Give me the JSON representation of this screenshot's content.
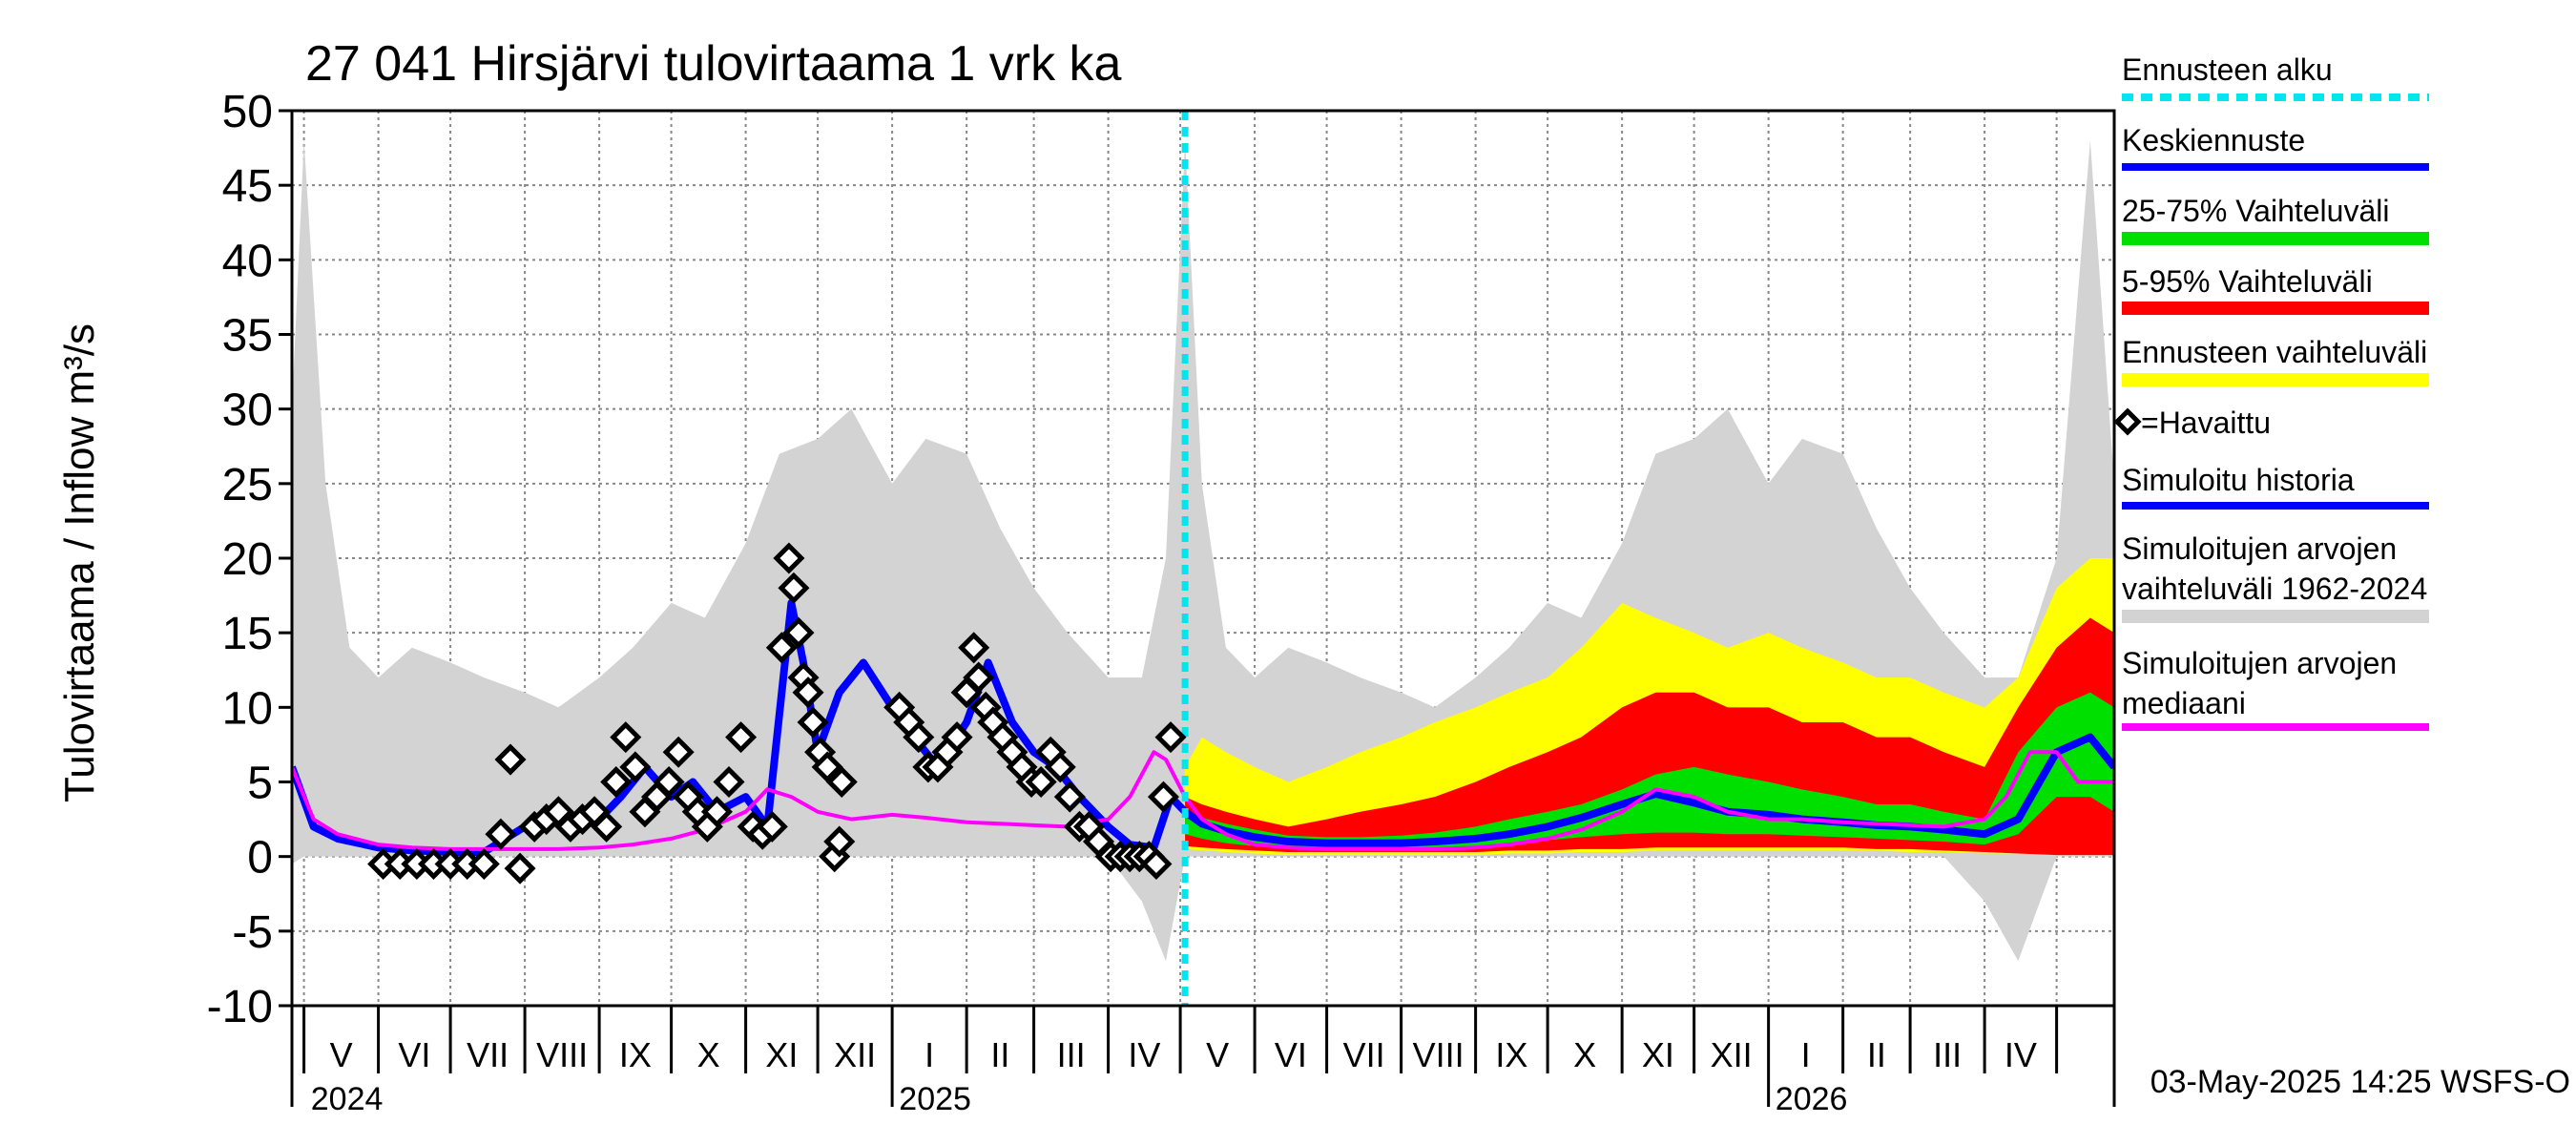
{
  "chart_data": {
    "type": "area",
    "title": "27 041 Hirsjärvi tulovirtaama 1 vrk ka",
    "ylabel": "Tulovirtaama / Inflow    m³/s",
    "ylim": [
      -10,
      50
    ],
    "yticks": [
      -10,
      -5,
      0,
      5,
      10,
      15,
      20,
      25,
      30,
      35,
      40,
      45,
      50
    ],
    "ytick_labels": [
      "-10",
      "-5",
      "0",
      "5",
      "10",
      "15",
      "20",
      "25",
      "30",
      "35",
      "40",
      "45",
      "50"
    ],
    "x_start": "2024-04-26",
    "x_end": "2026-05-25",
    "month_labels": [
      "V",
      "VI",
      "VII",
      "VIII",
      "IX",
      "X",
      "XI",
      "XII",
      "I",
      "II",
      "III",
      "IV",
      "V",
      "VI",
      "VII",
      "VIII",
      "IX",
      "X",
      "XI",
      "XII",
      "I",
      "II",
      "III",
      "IV"
    ],
    "year_labels": [
      "2024",
      "2025",
      "2026"
    ],
    "grid": true,
    "forecast_start": "2025-05-03",
    "legend_position": "right",
    "legend": [
      {
        "label": "Ennusteen alku",
        "color": "#00e5ee",
        "style": "dashed"
      },
      {
        "label": "Keskiennuste",
        "color": "#0000ff",
        "style": "line"
      },
      {
        "label": "25-75% Vaihteluväli",
        "color": "#00e000",
        "style": "band"
      },
      {
        "label": "5-95% Vaihteluväli",
        "color": "#ff0000",
        "style": "band"
      },
      {
        "label": "Ennusteen vaihteluväli",
        "color": "#ffff00",
        "style": "band"
      },
      {
        "label": "=Havaittu",
        "color": "#000000",
        "style": "marker"
      },
      {
        "label": "Simuloitu historia",
        "color": "#0000ff",
        "style": "line"
      },
      {
        "label": "Simuloitujen arvojen\nvaihteluväli 1962-2024",
        "color": "#d3d3d3",
        "style": "band"
      },
      {
        "label": "Simuloitujen arvojen\nmediaani",
        "color": "#ff00ff",
        "style": "line"
      }
    ],
    "footer": "03-May-2025 14:25 WSFS-O",
    "series": [
      {
        "name": "Simuloitujen arvojen vaihteluväli 1962-2024",
        "kind": "band",
        "color": "#d3d3d3",
        "x": [
          "2024-04-26",
          "2024-05-01",
          "2024-05-10",
          "2024-05-20",
          "2024-06-01",
          "2024-06-15",
          "2024-07-01",
          "2024-07-15",
          "2024-08-01",
          "2024-08-15",
          "2024-09-01",
          "2024-09-15",
          "2024-10-01",
          "2024-10-15",
          "2024-11-01",
          "2024-11-15",
          "2024-12-01",
          "2024-12-15",
          "2025-01-01",
          "2025-01-15",
          "2025-02-01",
          "2025-02-15",
          "2025-03-01",
          "2025-03-15",
          "2025-04-01",
          "2025-04-15",
          "2025-04-25",
          "2025-05-03",
          "2025-05-10",
          "2025-05-20",
          "2025-06-01",
          "2025-06-15",
          "2025-07-01",
          "2025-07-15",
          "2025-08-01",
          "2025-08-15",
          "2025-09-01",
          "2025-09-15",
          "2025-10-01",
          "2025-10-15",
          "2025-11-01",
          "2025-11-15",
          "2025-12-01",
          "2025-12-15",
          "2026-01-01",
          "2026-01-15",
          "2026-02-01",
          "2026-02-15",
          "2026-03-01",
          "2026-03-15",
          "2026-04-01",
          "2026-04-15",
          "2026-05-01",
          "2026-05-15",
          "2026-05-25"
        ],
        "low": [
          -0.5,
          0,
          0,
          0,
          0,
          0,
          0,
          0,
          0,
          0,
          0,
          0,
          0,
          0,
          0,
          0,
          0,
          0,
          0,
          0,
          0,
          0,
          0,
          0,
          0,
          -3,
          -7,
          0,
          0,
          0,
          0,
          0,
          0,
          0,
          0,
          0,
          0,
          0,
          0,
          0,
          0,
          0,
          0,
          0,
          0,
          0,
          0,
          0,
          0,
          0,
          -3,
          -7,
          0,
          0,
          0
        ],
        "high": [
          30,
          48,
          25,
          14,
          12,
          14,
          13,
          12,
          11,
          10,
          12,
          14,
          17,
          16,
          21,
          27,
          28,
          30,
          25,
          28,
          27,
          22,
          18,
          15,
          12,
          12,
          20,
          48,
          25,
          14,
          12,
          14,
          13,
          12,
          11,
          10,
          12,
          14,
          17,
          16,
          21,
          27,
          28,
          30,
          25,
          28,
          27,
          22,
          18,
          15,
          12,
          12,
          20,
          48,
          25
        ]
      },
      {
        "name": "Ennusteen vaihteluväli",
        "kind": "band",
        "color": "#ffff00",
        "x": [
          "2025-05-03",
          "2025-05-10",
          "2025-05-20",
          "2025-06-01",
          "2025-06-15",
          "2025-07-01",
          "2025-07-15",
          "2025-08-01",
          "2025-08-15",
          "2025-09-01",
          "2025-09-15",
          "2025-10-01",
          "2025-10-15",
          "2025-11-01",
          "2025-11-15",
          "2025-12-01",
          "2025-12-15",
          "2026-01-01",
          "2026-01-15",
          "2026-02-01",
          "2026-02-15",
          "2026-03-01",
          "2026-03-15",
          "2026-04-01",
          "2026-04-15",
          "2026-05-01",
          "2026-05-15",
          "2026-05-25"
        ],
        "low": [
          0.5,
          0.4,
          0.3,
          0.2,
          0.1,
          0.1,
          0.1,
          0.1,
          0.1,
          0.1,
          0.2,
          0.2,
          0.3,
          0.3,
          0.4,
          0.4,
          0.4,
          0.4,
          0.4,
          0.4,
          0.4,
          0.3,
          0.3,
          0.2,
          0.2,
          0.1,
          0.1,
          0.1
        ],
        "high": [
          6,
          8,
          7,
          6,
          5,
          6,
          7,
          8,
          9,
          10,
          11,
          12,
          14,
          17,
          16,
          15,
          14,
          15,
          14,
          13,
          12,
          12,
          11,
          10,
          12,
          18,
          20,
          20
        ]
      },
      {
        "name": "5-95% Vaihteluväli",
        "kind": "band",
        "color": "#ff0000",
        "x": [
          "2025-05-03",
          "2025-05-10",
          "2025-05-20",
          "2025-06-01",
          "2025-06-15",
          "2025-07-01",
          "2025-07-15",
          "2025-08-01",
          "2025-08-15",
          "2025-09-01",
          "2025-09-15",
          "2025-10-01",
          "2025-10-15",
          "2025-11-01",
          "2025-11-15",
          "2025-12-01",
          "2025-12-15",
          "2026-01-01",
          "2026-01-15",
          "2026-02-01",
          "2026-02-15",
          "2026-03-01",
          "2026-03-15",
          "2026-04-01",
          "2026-04-15",
          "2026-05-01",
          "2026-05-15",
          "2026-05-25"
        ],
        "low": [
          0.7,
          0.6,
          0.5,
          0.4,
          0.3,
          0.3,
          0.3,
          0.3,
          0.3,
          0.3,
          0.4,
          0.4,
          0.5,
          0.5,
          0.6,
          0.6,
          0.6,
          0.6,
          0.6,
          0.6,
          0.5,
          0.5,
          0.4,
          0.3,
          0.2,
          0.1,
          0.1,
          0.1
        ],
        "high": [
          4,
          3.5,
          3,
          2.5,
          2,
          2.5,
          3,
          3.5,
          4,
          5,
          6,
          7,
          8,
          10,
          11,
          11,
          10,
          10,
          9,
          9,
          8,
          8,
          7,
          6,
          10,
          14,
          16,
          15
        ]
      },
      {
        "name": "25-75% Vaihteluväli",
        "kind": "band",
        "color": "#00e000",
        "x": [
          "2025-05-03",
          "2025-05-10",
          "2025-05-20",
          "2025-06-01",
          "2025-06-15",
          "2025-07-01",
          "2025-07-15",
          "2025-08-01",
          "2025-08-15",
          "2025-09-01",
          "2025-09-15",
          "2025-10-01",
          "2025-10-15",
          "2025-11-01",
          "2025-11-15",
          "2025-12-01",
          "2025-12-15",
          "2026-01-01",
          "2026-01-15",
          "2026-02-01",
          "2026-02-15",
          "2026-03-01",
          "2026-03-15",
          "2026-04-01",
          "2026-04-15",
          "2026-05-01",
          "2026-05-15",
          "2026-05-25"
        ],
        "low": [
          1.5,
          1.2,
          0.9,
          0.7,
          0.5,
          0.5,
          0.5,
          0.5,
          0.6,
          0.7,
          0.9,
          1.1,
          1.3,
          1.5,
          1.6,
          1.6,
          1.5,
          1.5,
          1.4,
          1.3,
          1.2,
          1.1,
          1.0,
          0.8,
          1.5,
          4,
          4,
          3
        ],
        "high": [
          3,
          2.6,
          2.2,
          1.8,
          1.4,
          1.3,
          1.3,
          1.4,
          1.6,
          2,
          2.5,
          3,
          3.5,
          4.5,
          5.5,
          6,
          5.5,
          5,
          4.5,
          4,
          3.5,
          3.5,
          3,
          2.5,
          7,
          10,
          11,
          10
        ]
      },
      {
        "name": "Keskiennuste",
        "kind": "line",
        "color": "#0000ff",
        "x": [
          "2025-05-03",
          "2025-05-10",
          "2025-05-20",
          "2025-06-01",
          "2025-06-15",
          "2025-07-01",
          "2025-07-15",
          "2025-08-01",
          "2025-08-15",
          "2025-09-01",
          "2025-09-15",
          "2025-10-01",
          "2025-10-15",
          "2025-11-01",
          "2025-11-15",
          "2025-12-01",
          "2025-12-15",
          "2026-01-01",
          "2026-01-15",
          "2026-02-01",
          "2026-02-15",
          "2026-03-01",
          "2026-03-15",
          "2026-04-01",
          "2026-04-15",
          "2026-05-01",
          "2026-05-15",
          "2026-05-25"
        ],
        "y": [
          3,
          2.2,
          1.7,
          1.3,
          1.0,
          0.9,
          0.9,
          0.9,
          1.0,
          1.2,
          1.5,
          2.0,
          2.6,
          3.5,
          4.2,
          3.6,
          3.0,
          2.8,
          2.5,
          2.3,
          2.1,
          2.0,
          1.8,
          1.5,
          2.5,
          7,
          8,
          6
        ]
      },
      {
        "name": "Simuloitu historia",
        "kind": "line",
        "color": "#0000ff",
        "x": [
          "2024-04-26",
          "2024-05-05",
          "2024-05-15",
          "2024-06-01",
          "2024-06-15",
          "2024-07-01",
          "2024-07-15",
          "2024-08-01",
          "2024-08-15",
          "2024-09-01",
          "2024-09-10",
          "2024-09-20",
          "2024-10-01",
          "2024-10-10",
          "2024-10-20",
          "2024-11-01",
          "2024-11-10",
          "2024-11-20",
          "2024-11-25",
          "2024-12-01",
          "2024-12-10",
          "2024-12-20",
          "2025-01-01",
          "2025-01-10",
          "2025-01-20",
          "2025-02-01",
          "2025-02-10",
          "2025-02-20",
          "2025-03-01",
          "2025-03-10",
          "2025-03-20",
          "2025-04-01",
          "2025-04-10",
          "2025-04-20",
          "2025-04-27",
          "2025-05-03"
        ],
        "y": [
          6,
          2,
          1.2,
          0.6,
          0.4,
          0.3,
          0.3,
          2,
          2.5,
          2.5,
          4,
          6,
          4,
          5,
          3,
          4,
          2,
          17,
          13,
          7,
          11,
          13,
          10,
          8,
          6,
          9,
          13,
          9,
          7,
          6,
          4,
          2,
          0.8,
          0.6,
          4,
          3
        ]
      },
      {
        "name": "Simuloitujen arvojen mediaani",
        "kind": "line",
        "color": "#ff00ff",
        "x": [
          "2024-04-26",
          "2024-05-05",
          "2024-05-15",
          "2024-06-01",
          "2024-06-15",
          "2024-07-01",
          "2024-07-15",
          "2024-08-01",
          "2024-08-15",
          "2024-09-01",
          "2024-09-15",
          "2024-10-01",
          "2024-10-15",
          "2024-11-01",
          "2024-11-10",
          "2024-11-20",
          "2024-12-01",
          "2024-12-15",
          "2025-01-01",
          "2025-01-15",
          "2025-02-01",
          "2025-02-15",
          "2025-03-01",
          "2025-03-15",
          "2025-04-01",
          "2025-04-10",
          "2025-04-20",
          "2025-04-25",
          "2025-05-03",
          "2025-05-10",
          "2025-05-20",
          "2025-06-01",
          "2025-06-15",
          "2025-07-01",
          "2025-07-15",
          "2025-08-01",
          "2025-08-15",
          "2025-09-01",
          "2025-09-15",
          "2025-10-01",
          "2025-10-15",
          "2025-11-01",
          "2025-11-15",
          "2025-12-01",
          "2025-12-15",
          "2026-01-01",
          "2026-01-15",
          "2026-02-01",
          "2026-02-15",
          "2026-03-01",
          "2026-03-15",
          "2026-04-01",
          "2026-04-10",
          "2026-04-20",
          "2026-05-01",
          "2026-05-10",
          "2026-05-25"
        ],
        "y": [
          6,
          2.5,
          1.5,
          0.8,
          0.6,
          0.5,
          0.5,
          0.5,
          0.5,
          0.6,
          0.8,
          1.2,
          1.8,
          3,
          4.5,
          4,
          3,
          2.5,
          2.8,
          2.6,
          2.3,
          2.2,
          2.1,
          2.0,
          2.5,
          4,
          7,
          6.5,
          4,
          2.5,
          1.5,
          0.8,
          0.6,
          0.5,
          0.5,
          0.5,
          0.5,
          0.6,
          0.8,
          1.2,
          1.8,
          3,
          4.5,
          4,
          3,
          2.5,
          2.5,
          2.3,
          2.2,
          2.1,
          2.0,
          2.5,
          4,
          7,
          7,
          5,
          5
        ]
      },
      {
        "name": "Havaittu",
        "kind": "marker",
        "color": "#000000",
        "x": [
          "2024-06-03",
          "2024-06-10",
          "2024-06-17",
          "2024-06-24",
          "2024-07-01",
          "2024-07-08",
          "2024-07-15",
          "2024-07-22",
          "2024-07-26",
          "2024-07-30",
          "2024-08-05",
          "2024-08-10",
          "2024-08-15",
          "2024-08-20",
          "2024-08-25",
          "2024-08-30",
          "2024-09-04",
          "2024-09-08",
          "2024-09-12",
          "2024-09-16",
          "2024-09-20",
          "2024-09-25",
          "2024-09-30",
          "2024-10-04",
          "2024-10-08",
          "2024-10-12",
          "2024-10-16",
          "2024-10-20",
          "2024-10-25",
          "2024-10-30",
          "2024-11-04",
          "2024-11-08",
          "2024-11-12",
          "2024-11-16",
          "2024-11-19",
          "2024-11-21",
          "2024-11-23",
          "2024-11-25",
          "2024-11-27",
          "2024-11-29",
          "2024-12-02",
          "2024-12-05",
          "2024-12-08",
          "2024-12-10",
          "2024-12-11",
          "2025-01-04",
          "2025-01-08",
          "2025-01-12",
          "2025-01-16",
          "2025-01-20",
          "2025-01-24",
          "2025-01-28",
          "2025-02-01",
          "2025-02-04",
          "2025-02-06",
          "2025-02-09",
          "2025-02-12",
          "2025-02-16",
          "2025-02-20",
          "2025-02-24",
          "2025-02-28",
          "2025-03-04",
          "2025-03-08",
          "2025-03-12",
          "2025-03-16",
          "2025-03-20",
          "2025-03-24",
          "2025-03-28",
          "2025-04-02",
          "2025-04-06",
          "2025-04-10",
          "2025-04-14",
          "2025-04-18",
          "2025-04-21",
          "2025-04-24",
          "2025-04-27"
        ],
        "y": [
          -0.5,
          -0.5,
          -0.5,
          -0.5,
          -0.5,
          -0.5,
          -0.5,
          1.5,
          6.5,
          -0.8,
          2,
          2.5,
          3,
          2,
          2.5,
          3,
          2,
          5,
          8,
          6,
          3,
          4,
          5,
          7,
          4,
          3,
          2,
          3,
          5,
          8,
          2,
          1.5,
          2,
          14,
          20,
          18,
          15,
          12,
          11,
          9,
          7,
          6,
          0,
          1,
          5,
          10,
          9,
          8,
          6,
          6,
          7,
          8,
          11,
          14,
          12,
          10,
          9,
          8,
          7,
          6,
          5,
          5,
          7,
          6,
          4,
          2,
          2,
          1,
          0,
          0,
          0,
          0,
          0,
          -0.5,
          4,
          8
        ]
      }
    ]
  }
}
